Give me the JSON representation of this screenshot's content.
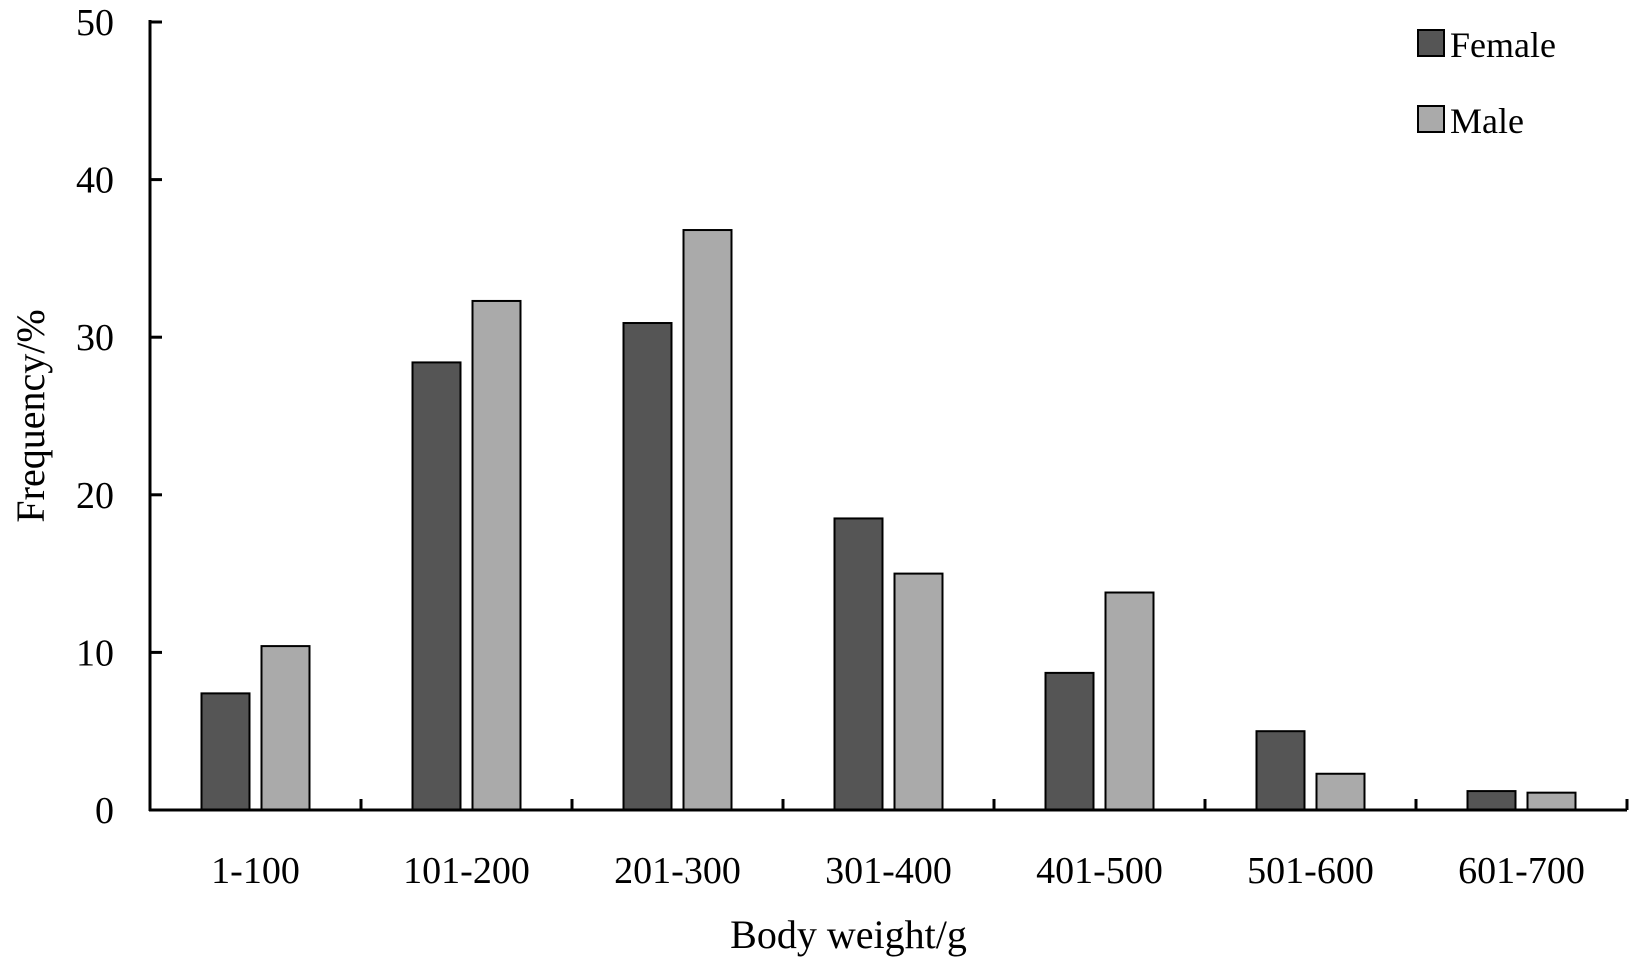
{
  "chart_data": {
    "type": "bar",
    "xlabel": "Body weight/g",
    "ylabel": "Frequency/%",
    "ylim": [
      0,
      50
    ],
    "yticks": [
      "0",
      "10",
      "20",
      "30",
      "40",
      "50"
    ],
    "categories": [
      "1-100",
      "101-200",
      "201-300",
      "301-400",
      "401-500",
      "501-600",
      "601-700"
    ],
    "series": [
      {
        "name": "Female",
        "color": "#555555",
        "values": [
          7.4,
          28.4,
          30.9,
          18.5,
          8.7,
          5.0,
          1.2
        ]
      },
      {
        "name": "Male",
        "color": "#aaaaaa",
        "values": [
          10.4,
          32.3,
          36.8,
          15.0,
          13.8,
          2.3,
          1.1
        ]
      }
    ],
    "grid": false,
    "legend_position": "top-right"
  }
}
